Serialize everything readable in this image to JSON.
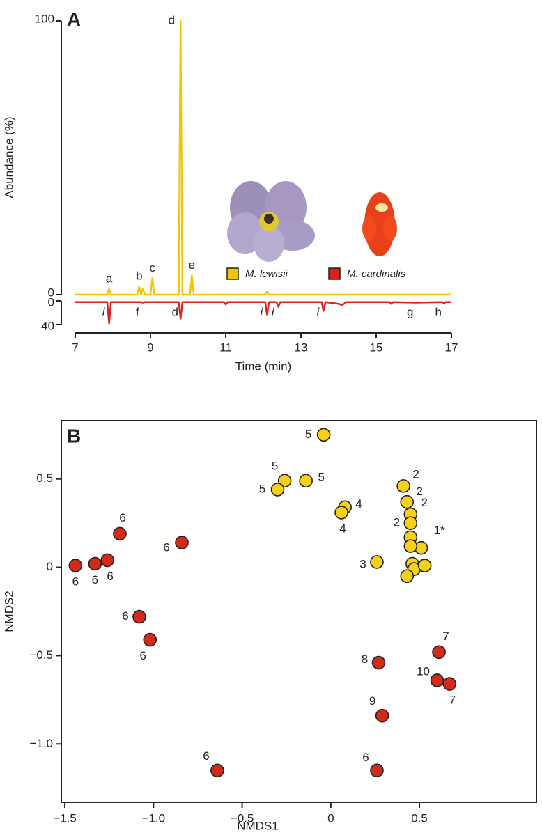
{
  "chart_data": [
    {
      "type": "line",
      "panel": "A",
      "ylabel": "Abundance (%)",
      "xlabel": "Time (min)",
      "x": [
        7,
        7.85,
        7.9,
        7.95,
        8.65,
        8.7,
        8.75,
        8.8,
        8.85,
        9.0,
        9.05,
        9.1,
        9.75,
        9.8,
        9.85,
        10.05,
        10.1,
        10.15,
        10.95,
        11.0,
        11.05,
        12.05,
        12.1,
        12.15,
        12.35,
        12.4,
        12.45,
        13.55,
        13.6,
        13.65,
        14.0,
        14.1,
        14.2,
        15.35,
        15.4,
        15.45,
        16.05,
        16.75,
        16.8,
        16.85,
        17
      ],
      "xlim": [
        7,
        17
      ],
      "xticks": [
        7,
        9,
        11,
        13,
        15,
        17
      ],
      "ylim": [
        0,
        100
      ],
      "yticks": [
        0,
        100
      ],
      "y2lim": [
        0,
        40
      ],
      "y2ticks": [
        0,
        40
      ],
      "y2_inverted": true,
      "series": [
        {
          "name": "M. lewisii",
          "color": "#f2c500",
          "values": [
            0,
            0,
            2,
            0,
            0,
            3,
            0,
            2,
            0,
            0,
            6,
            0,
            0,
            100,
            0,
            0,
            7,
            0,
            0,
            0,
            0,
            0,
            1,
            0,
            0,
            0,
            0,
            0,
            0,
            0,
            0,
            0,
            0,
            0,
            0,
            0,
            0,
            0,
            0,
            0,
            0
          ],
          "labels": [
            null,
            null,
            "a",
            null,
            null,
            "b",
            null,
            null,
            null,
            null,
            "c",
            null,
            null,
            "d",
            null,
            null,
            "e",
            null,
            null,
            null,
            null,
            null,
            null,
            null,
            null,
            null,
            null,
            null,
            null,
            null,
            null,
            null,
            null,
            null,
            null,
            null,
            null,
            null,
            null,
            null,
            null
          ]
        },
        {
          "name": "M. cardinalis",
          "color": "#d8231f",
          "axis": "y2",
          "values": [
            2,
            2,
            38,
            2,
            2,
            2,
            2,
            3,
            2,
            2,
            2,
            2,
            2,
            30,
            2,
            2,
            2,
            2,
            2,
            6,
            2,
            2,
            24,
            2,
            2,
            10,
            2,
            2,
            17,
            2,
            5,
            7,
            2,
            2,
            5,
            2,
            3,
            2,
            4,
            2,
            2
          ],
          "labels": [
            null,
            null,
            "i",
            null,
            null,
            null,
            null,
            "f",
            null,
            null,
            null,
            null,
            null,
            "d",
            null,
            null,
            null,
            null,
            null,
            null,
            null,
            null,
            "i",
            null,
            null,
            "i",
            null,
            null,
            "i",
            null,
            null,
            null,
            null,
            null,
            null,
            null,
            "g",
            null,
            "h",
            null,
            null
          ]
        }
      ]
    },
    {
      "type": "scatter",
      "panel": "B",
      "xlabel": "NMDS1",
      "ylabel": "NMDS2",
      "xlim": [
        -1.52,
        1.16
      ],
      "ylim": [
        -1.33,
        0.83
      ],
      "xticks": [
        {
          "value": -1.5,
          "label": "−1.5"
        },
        {
          "value": -1,
          "label": "−1.0"
        },
        {
          "value": -0.5,
          "label": "−0.5"
        },
        0,
        0.5
      ],
      "yticks": [
        {
          "value": -1,
          "label": "−1.0"
        },
        {
          "value": -0.5,
          "label": "−0.5"
        },
        0,
        0.5
      ],
      "series": [
        {
          "color": "#f7d117",
          "x": [
            -0.04,
            -0.26,
            -0.3,
            -0.14,
            0.08,
            0.06,
            0.26,
            0.41,
            0.43,
            0.45,
            0.45,
            0.51,
            0.45,
            0.45,
            0.46,
            0.47,
            0.53,
            0.43
          ],
          "values": [
            0.75,
            0.49,
            0.44,
            0.49,
            0.34,
            0.31,
            0.03,
            0.46,
            0.37,
            0.3,
            0.25,
            0.11,
            0.17,
            0.12,
            0.02,
            -0.01,
            0.01,
            -0.05
          ],
          "labels": [
            "5",
            "5",
            "5",
            "5",
            "4",
            "4",
            "3",
            "2",
            "2",
            "2",
            "2",
            "1*",
            null,
            null,
            null,
            null,
            null,
            null
          ]
        },
        {
          "color": "#d42a1a",
          "x": [
            -1.44,
            -1.33,
            -1.26,
            -1.19,
            -0.84,
            -1.08,
            -1.02,
            -0.64,
            0.26,
            0.27,
            0.61,
            0.6,
            0.67,
            0.29
          ],
          "values": [
            0.01,
            0.02,
            0.04,
            0.19,
            0.14,
            -0.28,
            -0.41,
            -1.15,
            -1.15,
            -0.54,
            -0.48,
            -0.64,
            -0.66,
            -0.84
          ],
          "labels": [
            "6",
            "6",
            "6",
            "6",
            "6",
            "6",
            "6",
            "6",
            "6",
            "8",
            "7",
            "10",
            "7",
            "9"
          ]
        }
      ]
    }
  ]
}
